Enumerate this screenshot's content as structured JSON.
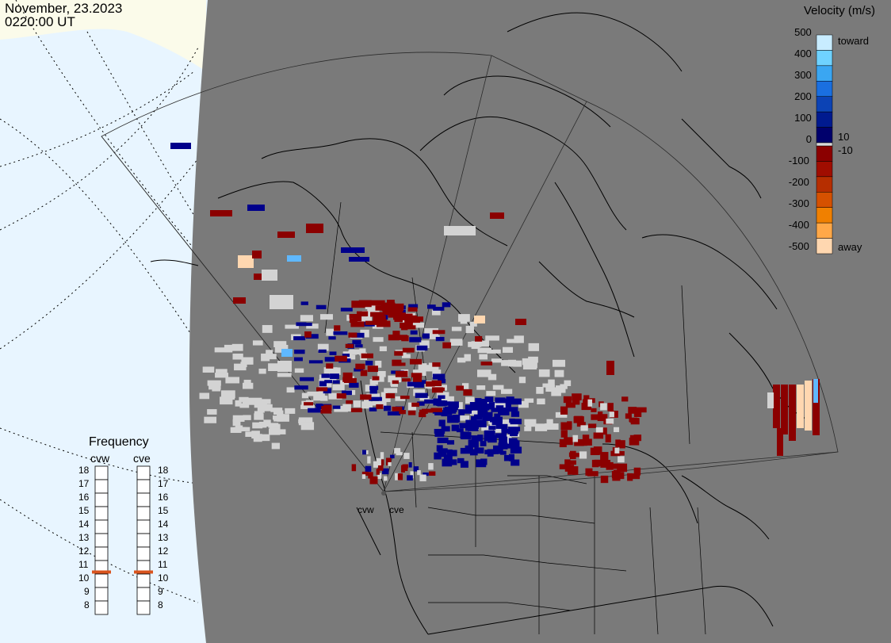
{
  "header": {
    "date": "November, 23.2023",
    "time": "0220:00 UT"
  },
  "colorbar": {
    "title": "Velocity (m/s)",
    "ticks": [
      "500",
      "400",
      "300",
      "200",
      "100",
      "0",
      "-100",
      "-200",
      "-300",
      "-400",
      "-500"
    ],
    "toward_label": "toward",
    "away_label": "away",
    "pos_threshold": "10",
    "neg_threshold": "-10",
    "colors": [
      "#c8ecff",
      "#6fd2ff",
      "#3aa6f2",
      "#1a6fe0",
      "#0c43b5",
      "#001a8f",
      "#00006c",
      "#8b0000",
      "#a00d00",
      "#b62e00",
      "#d55100",
      "#f08000",
      "#ffa848",
      "#ffd7b0"
    ]
  },
  "frequency": {
    "title": "Frequency",
    "radars": [
      "cvw",
      "cve"
    ],
    "scale": [
      "18",
      "17",
      "16",
      "15",
      "14",
      "13",
      "12",
      "11",
      "10",
      "9",
      "8"
    ],
    "current_mhz": {
      "cvw": 11,
      "cve": 11
    },
    "indicator_color": "#d9541e"
  },
  "map": {
    "radar_sites": [
      "cvw",
      "cve"
    ],
    "land_color": "#7a7a7a",
    "ocean_color": "#e8f5ff",
    "ice_color": "#fbfbea",
    "ground_scatter_color": "#d3d3d3"
  }
}
